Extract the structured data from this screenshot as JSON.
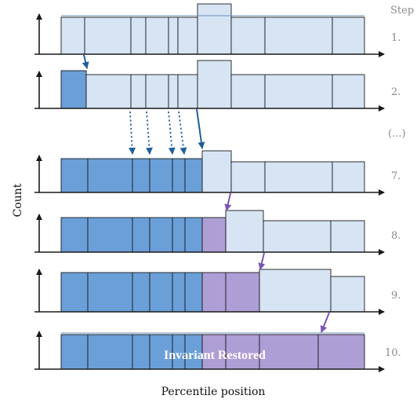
{
  "diagram": {
    "y_axis_label": "Count",
    "x_axis_label": "Percentile position",
    "step_header": "Step",
    "ellipsis_label": "(...)",
    "banner_text": "Invariant Restored",
    "colors": {
      "light_bin": "#d6e4f4",
      "dark_bin": "#6a9fd8",
      "purple_bin": "#ae9ed6",
      "blue_arrow": "#1f5f9c",
      "purple_arrow": "#7b55b8",
      "outline": "#1a1a1a"
    },
    "rows": [
      {
        "step": "1."
      },
      {
        "step": "2."
      },
      {
        "step": "7."
      },
      {
        "step": "8."
      },
      {
        "step": "9."
      },
      {
        "step": "10."
      }
    ]
  }
}
